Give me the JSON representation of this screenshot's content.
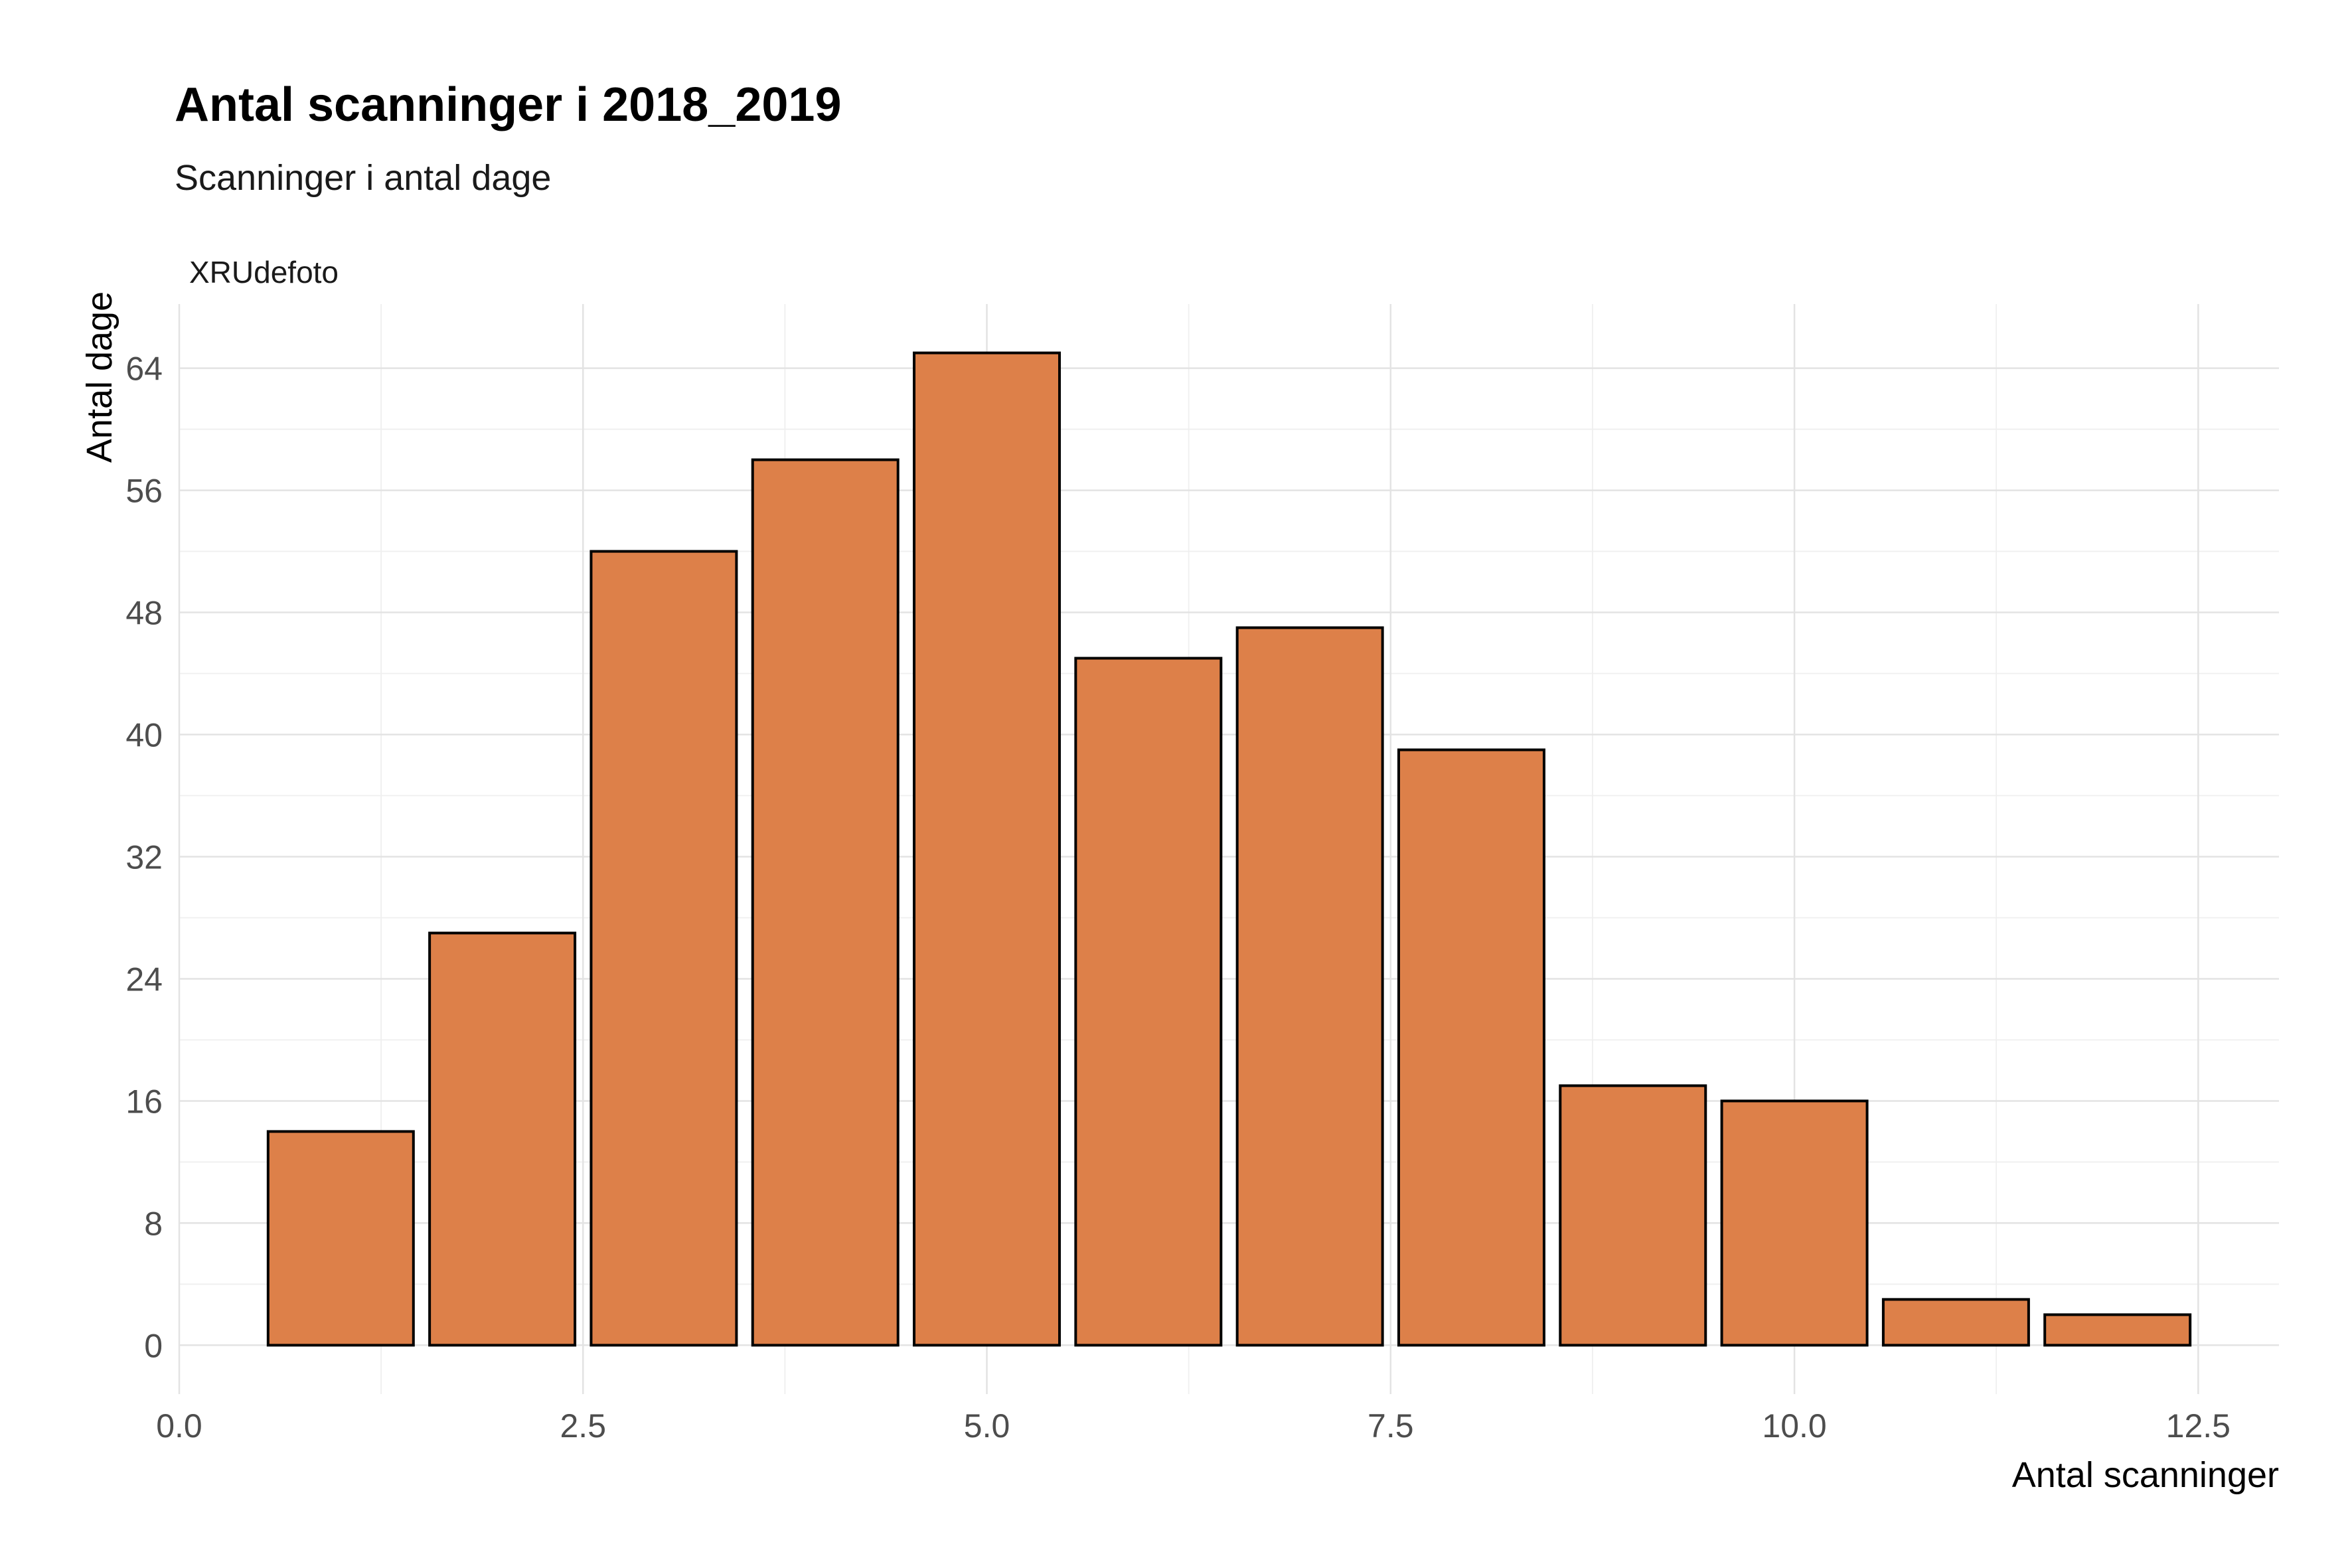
{
  "chart_data": {
    "type": "bar",
    "title": "Antal scanninger i 2018_2019",
    "subtitle": "Scanninger i antal dage",
    "facet_label": "XRUdefoto",
    "xlabel": "Antal scanninger",
    "ylabel": "Antal dage",
    "x": [
      1,
      2,
      3,
      4,
      5,
      6,
      7,
      8,
      9,
      10,
      11,
      12
    ],
    "values": [
      14,
      27,
      52,
      58,
      65,
      45,
      47,
      39,
      17,
      16,
      3,
      2
    ],
    "xlim": [
      0,
      13.0
    ],
    "ylim": [
      -3.2,
      68.2
    ],
    "x_ticks": [
      0,
      2.5,
      5,
      7.5,
      10,
      12.5
    ],
    "x_tick_labels": [
      "0.0",
      "2.5",
      "5.0",
      "7.5",
      "10.0",
      "12.5"
    ],
    "y_ticks": [
      0,
      8,
      16,
      24,
      32,
      40,
      48,
      56,
      64
    ],
    "y_tick_labels": [
      "0",
      "8",
      "16",
      "24",
      "32",
      "40",
      "48",
      "56",
      "64"
    ],
    "grid": true,
    "legend": "none",
    "colors": {
      "bar_fill": "#DD8049",
      "bar_stroke": "#000000"
    }
  }
}
